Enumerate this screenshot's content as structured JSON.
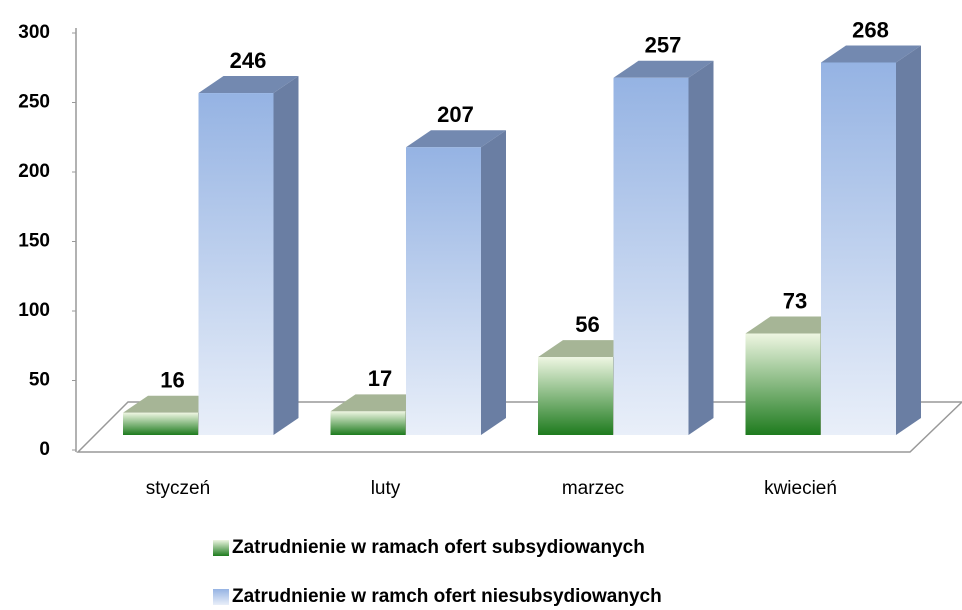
{
  "chart_data": {
    "type": "bar3d",
    "categories": [
      "styczeń",
      "luty",
      "marzec",
      "kwiecień"
    ],
    "series": [
      {
        "name": "Zatrudnienie w ramach ofert subsydiowanych",
        "color": "#1e7b1e",
        "values": [
          16,
          17,
          56,
          73
        ]
      },
      {
        "name": "Zatrudnienie w ramch ofert niesubsydiowanych",
        "color": "#95b3e3",
        "values": [
          246,
          207,
          257,
          268
        ]
      }
    ],
    "ylim": [
      0,
      300
    ],
    "yticks": [
      0,
      50,
      100,
      150,
      200,
      250,
      300
    ],
    "grid": false
  }
}
